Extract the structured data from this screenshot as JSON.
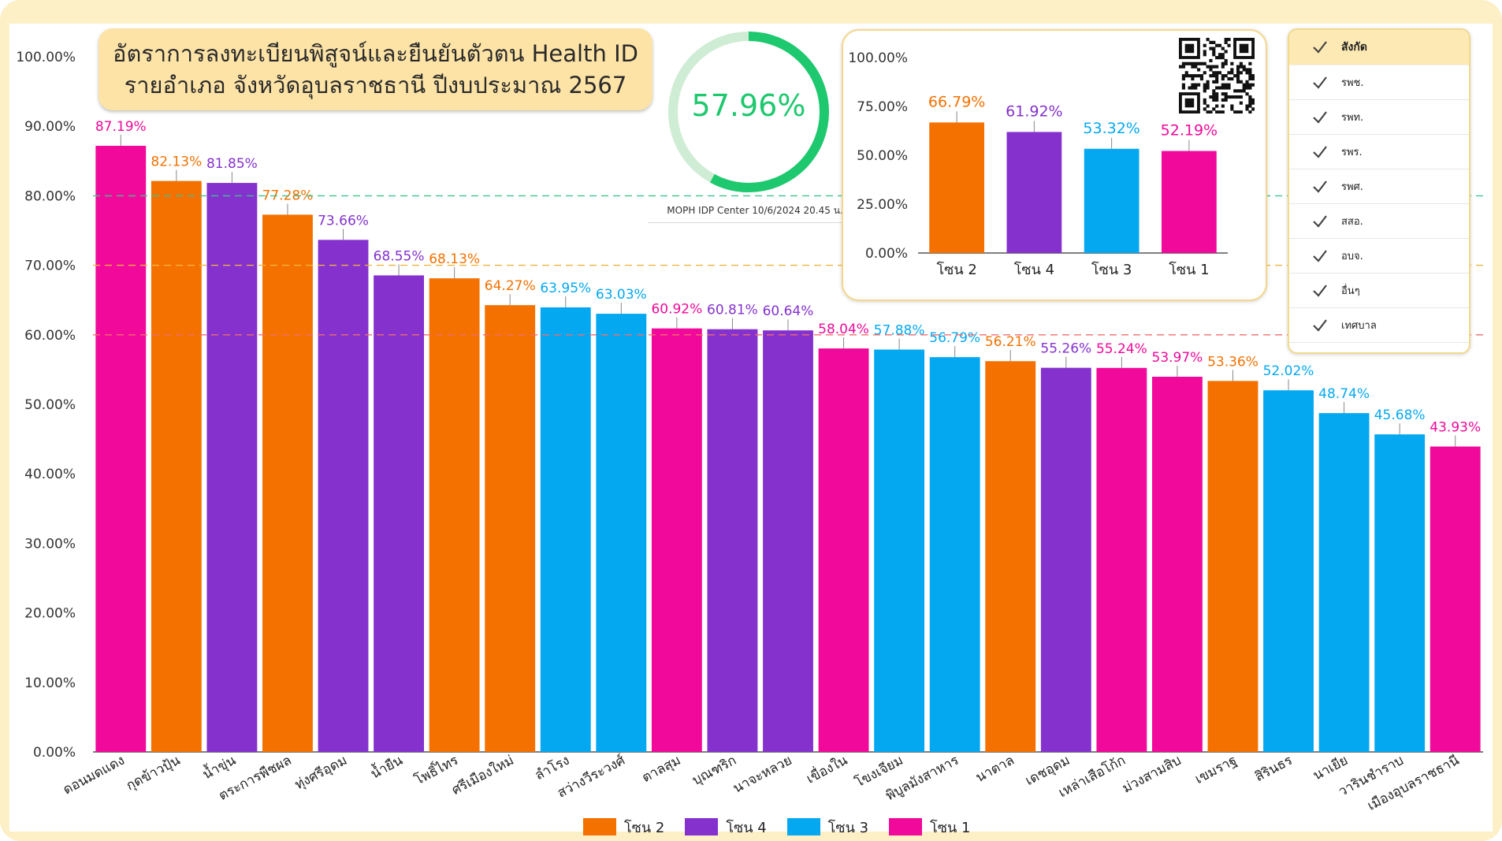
{
  "header": {
    "title_line1": "อัตราการลงทะเบียนพิสูจน์และยืนยันตัวตน Health ID",
    "title_line2": "รายอำเภอ จังหวัดอุบลราชธานี ปีงบประมาณ 2567"
  },
  "gauge": {
    "value_label": "57.96%",
    "value": 57.96,
    "color": "#1ec86e",
    "track_color": "#cfecd4"
  },
  "stamp": "MOPH IDP Center 10/6/2024 20.45 น.",
  "colors": {
    "zone2": "#f47100",
    "zone4": "#8431ce",
    "zone3": "#04a8f0",
    "zone1": "#f0099a"
  },
  "legend": [
    {
      "label": "โซน 2",
      "color": "#f47100"
    },
    {
      "label": "โซน 4",
      "color": "#8431ce"
    },
    {
      "label": "โซน 3",
      "color": "#04a8f0"
    },
    {
      "label": "โซน 1",
      "color": "#f0099a"
    }
  ],
  "filter": {
    "header_label": "สังกัด",
    "items": [
      {
        "label": "รพช."
      },
      {
        "label": "รพท."
      },
      {
        "label": "รพร."
      },
      {
        "label": "รพศ."
      },
      {
        "label": "สสอ."
      },
      {
        "label": "อบจ."
      },
      {
        "label": "อื่นๆ"
      },
      {
        "label": "เทศบาล"
      }
    ]
  },
  "qr_icon": "qr-code-icon",
  "chart_data": [
    {
      "type": "bar",
      "title": "",
      "xlabel": "",
      "ylabel": "",
      "ylim": [
        0,
        100
      ],
      "yticks": [
        "0.00%",
        "10.00%",
        "20.00%",
        "30.00%",
        "40.00%",
        "50.00%",
        "60.00%",
        "70.00%",
        "80.00%",
        "90.00%",
        "100.00%"
      ],
      "reference_lines": [
        {
          "value": 80,
          "color": "#3ec28c"
        },
        {
          "value": 70,
          "color": "#f0b43c"
        },
        {
          "value": 60,
          "color": "#f06e6e"
        }
      ],
      "grid": false,
      "legend_position": "bottom",
      "categories": [
        "ดอนมดแดง",
        "กุดข้าวปุ้น",
        "น้ำขุ่น",
        "ตระการพืชผล",
        "ทุ่งศรีอุดม",
        "น้ำยืน",
        "โพธิ์ไทร",
        "ศรีเมืองใหม่",
        "ลำโรง",
        "สว่างวีระวงศ์",
        "ตาลสุม",
        "บุณฑริก",
        "นาจะหลวย",
        "เขื่องใน",
        "โขงเจียม",
        "พิบูลมังสาหาร",
        "นาตาล",
        "เดชอุดม",
        "เหล่าเสือโก้ก",
        "ม่วงสามสิบ",
        "เขมราฐ",
        "สิรินธร",
        "นาเยีย",
        "วารินชำราบ",
        "เมืองอุบลราชธานี"
      ],
      "values": [
        87.19,
        82.13,
        81.85,
        77.28,
        73.66,
        68.55,
        68.13,
        64.27,
        63.95,
        63.03,
        60.92,
        60.81,
        60.64,
        58.04,
        57.88,
        56.79,
        56.21,
        55.26,
        55.24,
        53.97,
        53.36,
        52.02,
        48.74,
        45.68,
        43.93
      ],
      "value_labels": [
        "87.19%",
        "82.13%",
        "81.85%",
        "77.28%",
        "73.66%",
        "68.55%",
        "68.13%",
        "64.27%",
        "63.95%",
        "63.03%",
        "60.92%",
        "60.81%",
        "60.64%",
        "58.04%",
        "57.88%",
        "56.79%",
        "56.21%",
        "55.26%",
        "55.24%",
        "53.97%",
        "53.36%",
        "52.02%",
        "48.74%",
        "45.68%",
        "43.93%"
      ],
      "zones": [
        "โซน 1",
        "โซน 2",
        "โซน 4",
        "โซน 2",
        "โซน 4",
        "โซน 4",
        "โซน 2",
        "โซน 2",
        "โซน 3",
        "โซน 3",
        "โซน 1",
        "โซน 4",
        "โซน 4",
        "โซน 1",
        "โซน 3",
        "โซน 3",
        "โซน 2",
        "โซน 4",
        "โซน 1",
        "โซน 1",
        "โซน 2",
        "โซน 3",
        "โซน 3",
        "โซน 3",
        "โซน 1"
      ]
    },
    {
      "type": "bar",
      "title": "",
      "ylim": [
        0,
        100
      ],
      "yticks": [
        "0.00%",
        "25.00%",
        "50.00%",
        "75.00%",
        "100.00%"
      ],
      "categories": [
        "โซน 2",
        "โซน 4",
        "โซน 3",
        "โซน 1"
      ],
      "values": [
        66.79,
        61.92,
        53.32,
        52.19
      ],
      "value_labels": [
        "66.79%",
        "61.92%",
        "53.32%",
        "52.19%"
      ]
    }
  ]
}
